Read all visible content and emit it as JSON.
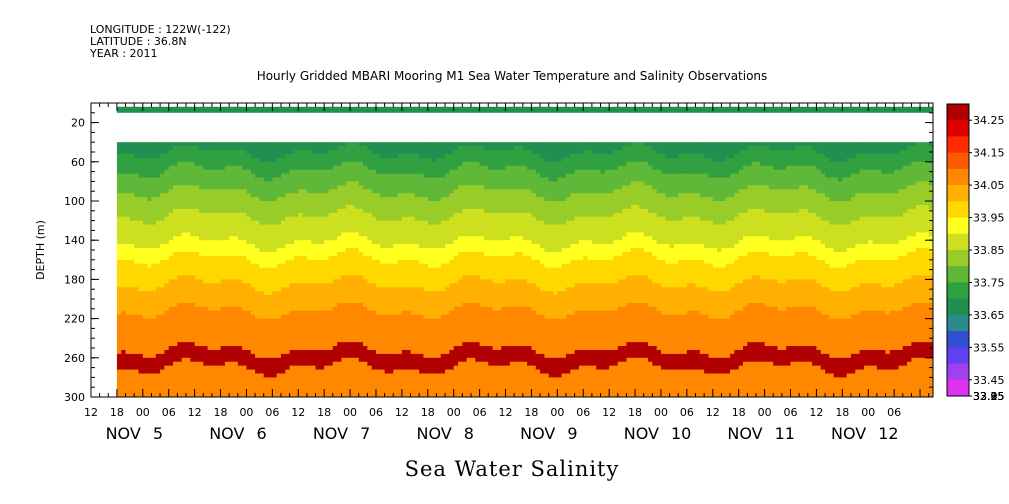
{
  "header": {
    "longitude": "LONGITUDE : 122W(-122)",
    "latitude": "LATITUDE : 36.8N",
    "year": "YEAR : 2011"
  },
  "chart_data": {
    "type": "heatmap",
    "title": "Hourly Gridded MBARI Mooring M1 Sea Water Temperature and Salinity Observations",
    "xlabel": "Sea Water Salinity",
    "ylabel": "DEPTH (m)",
    "y_ticks": [
      20,
      60,
      100,
      140,
      180,
      220,
      260,
      300
    ],
    "ylim": [
      300,
      0
    ],
    "x_range_hours": [
      0,
      195
    ],
    "x_hour_ticks": [
      "12",
      "18",
      "00",
      "06",
      "12",
      "18",
      "00",
      "06",
      "12",
      "18",
      "00",
      "06",
      "12",
      "18",
      "00",
      "06",
      "12",
      "18",
      "00",
      "06",
      "12",
      "18",
      "00",
      "06",
      "12",
      "18",
      "00",
      "06",
      "12",
      "18",
      "00",
      "06"
    ],
    "x_date_labels": [
      {
        "month": "NOV",
        "day": "5"
      },
      {
        "month": "NOV",
        "day": "6"
      },
      {
        "month": "NOV",
        "day": "7"
      },
      {
        "month": "NOV",
        "day": "8"
      },
      {
        "month": "NOV",
        "day": "9"
      },
      {
        "month": "NOV",
        "day": "10"
      },
      {
        "month": "NOV",
        "day": "11"
      },
      {
        "month": "NOV",
        "day": "12"
      }
    ],
    "colorbar_levels": [
      32.95,
      33.05,
      33.15,
      33.25,
      33.35,
      33.45,
      33.55,
      33.65,
      33.75,
      33.85,
      33.95,
      34.05,
      34.15,
      34.25
    ],
    "colorbar_colors": [
      "#e030f0",
      "#a040f0",
      "#6040f0",
      "#3050d0",
      "#2a8a8c",
      "#209050",
      "#30a040",
      "#60b838",
      "#98cc28",
      "#cce020",
      "#ffff20",
      "#ffd800",
      "#ffb000",
      "#ff8800",
      "#ff5a00",
      "#ff2a00",
      "#e00000",
      "#b00000"
    ],
    "depth_profile_psu": [
      {
        "depth": 40,
        "value": 33.4
      },
      {
        "depth": 60,
        "value": 33.52
      },
      {
        "depth": 100,
        "value": 33.7
      },
      {
        "depth": 140,
        "value": 33.85
      },
      {
        "depth": 160,
        "value": 33.97
      },
      {
        "depth": 180,
        "value": 34.04
      },
      {
        "depth": 200,
        "value": 34.12
      },
      {
        "depth": 220,
        "value": 34.18
      },
      {
        "depth": 240,
        "value": 34.22
      },
      {
        "depth": 260,
        "value": 34.28
      },
      {
        "depth": 280,
        "value": 34.2
      },
      {
        "depth": 300,
        "value": 34.18
      }
    ],
    "surface_band": {
      "depth": 10,
      "value": 33.35
    },
    "grid": false,
    "legend": "right colorbar"
  }
}
